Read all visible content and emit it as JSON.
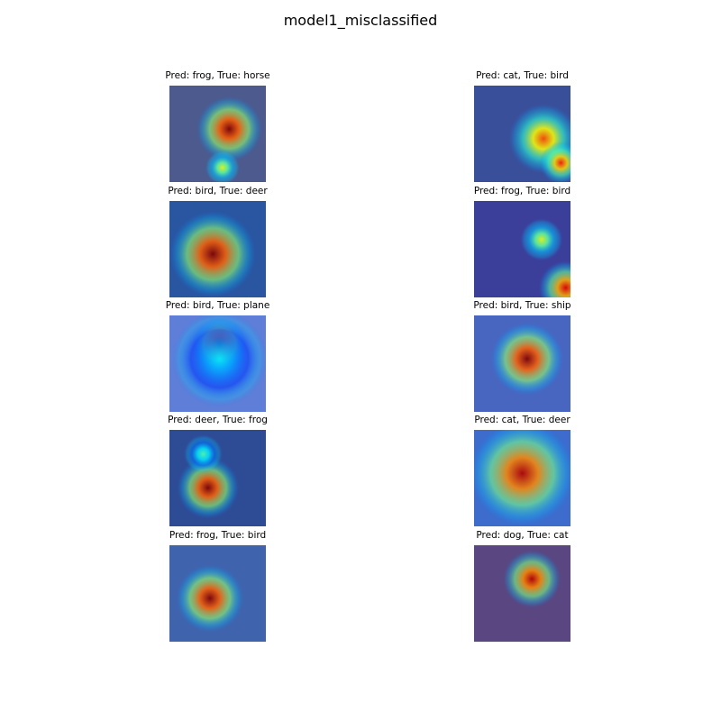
{
  "chart_data": {
    "type": "image-grid",
    "title": "model1_misclassified",
    "rows": 5,
    "columns": 2,
    "colormap": "jet",
    "images": [
      {
        "caption": "Pred: frog, True: horse",
        "predicted": "frog",
        "true": "horse",
        "base": "#4c5a8e",
        "spots": [
          {
            "cx": 0.62,
            "cy": 0.45,
            "r": 0.34,
            "v": 1.0
          },
          {
            "cx": 0.55,
            "cy": 0.85,
            "r": 0.18,
            "v": 0.6
          }
        ]
      },
      {
        "caption": "Pred: cat, True: bird",
        "predicted": "cat",
        "true": "bird",
        "base": "#3a4f9a",
        "spots": [
          {
            "cx": 0.72,
            "cy": 0.55,
            "r": 0.36,
            "v": 0.8
          },
          {
            "cx": 0.9,
            "cy": 0.8,
            "r": 0.22,
            "v": 0.85
          }
        ]
      },
      {
        "caption": "Pred: bird, True: deer",
        "predicted": "bird",
        "true": "deer",
        "base": "#2a55a0",
        "spots": [
          {
            "cx": 0.45,
            "cy": 0.55,
            "r": 0.45,
            "v": 1.0
          }
        ]
      },
      {
        "caption": "Pred: frog, True: bird",
        "predicted": "frog",
        "true": "bird",
        "base": "#3b3f9a",
        "spots": [
          {
            "cx": 0.7,
            "cy": 0.4,
            "r": 0.22,
            "v": 0.6
          },
          {
            "cx": 0.95,
            "cy": 0.9,
            "r": 0.28,
            "v": 0.9
          }
        ]
      },
      {
        "caption": "Pred: bird, True: plane",
        "predicted": "bird",
        "true": "plane",
        "base": "#5f7ed8",
        "spots": [
          {
            "cx": 0.52,
            "cy": 0.3,
            "r": 0.28,
            "v": 1.0
          },
          {
            "cx": 0.52,
            "cy": 0.45,
            "r": 0.5,
            "v": 0.35
          }
        ]
      },
      {
        "caption": "Pred: bird, True: ship",
        "predicted": "bird",
        "true": "ship",
        "base": "#4866c0",
        "spots": [
          {
            "cx": 0.55,
            "cy": 0.45,
            "r": 0.38,
            "v": 1.0
          }
        ]
      },
      {
        "caption": "Pred: deer, True: frog",
        "predicted": "deer",
        "true": "frog",
        "base": "#2e4c96",
        "spots": [
          {
            "cx": 0.4,
            "cy": 0.6,
            "r": 0.32,
            "v": 1.0
          },
          {
            "cx": 0.35,
            "cy": 0.25,
            "r": 0.2,
            "v": 0.45
          }
        ]
      },
      {
        "caption": "Pred: cat, True: deer",
        "predicted": "cat",
        "true": "deer",
        "base": "#3d6ccc",
        "spots": [
          {
            "cx": 0.5,
            "cy": 0.45,
            "r": 0.55,
            "v": 0.95
          }
        ]
      },
      {
        "caption": "Pred: frog, True: bird",
        "predicted": "frog",
        "true": "bird",
        "base": "#3f64ad",
        "spots": [
          {
            "cx": 0.42,
            "cy": 0.55,
            "r": 0.35,
            "v": 1.0
          }
        ]
      },
      {
        "caption": "Pred: dog, True: cat",
        "predicted": "dog",
        "true": "cat",
        "base": "#5a4680",
        "spots": [
          {
            "cx": 0.6,
            "cy": 0.35,
            "r": 0.3,
            "v": 0.95
          }
        ]
      }
    ]
  }
}
